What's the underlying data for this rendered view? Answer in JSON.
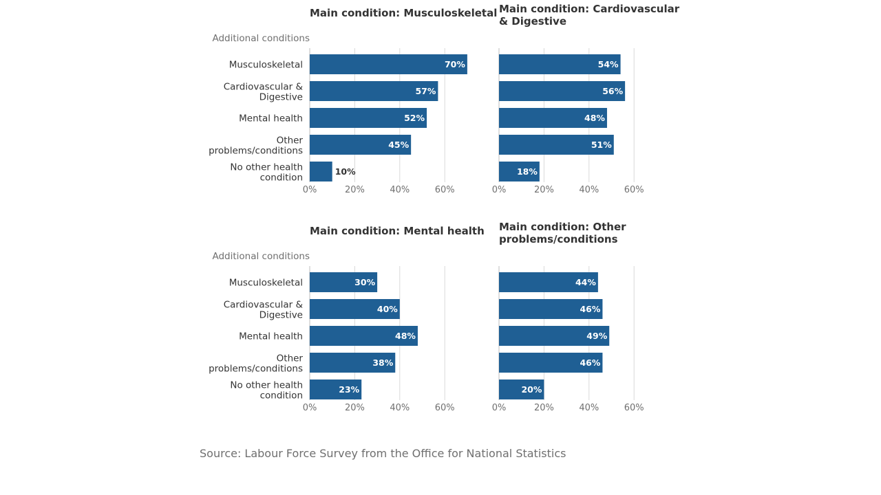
{
  "chart_data": [
    {
      "type": "bar",
      "orientation": "horizontal",
      "title": "Main condition: Musculoskeletal",
      "ylabel": "Additional conditions",
      "categories": [
        "Musculoskeletal",
        "Cardiovascular & Digestive",
        "Mental health",
        "Other problems/conditions",
        "No other health condition"
      ],
      "values": [
        70,
        57,
        52,
        45,
        10
      ],
      "value_labels": [
        "70%",
        "57%",
        "52%",
        "45%",
        "10%"
      ],
      "xlim": [
        0,
        70
      ],
      "xticks": [
        "0%",
        "20%",
        "40%",
        "60%"
      ],
      "grid": true
    },
    {
      "type": "bar",
      "orientation": "horizontal",
      "title": "Main condition: Cardiovascular & Digestive",
      "ylabel": "",
      "categories": [
        "Musculoskeletal",
        "Cardiovascular & Digestive",
        "Mental health",
        "Other problems/conditions",
        "No other health condition"
      ],
      "values": [
        54,
        56,
        48,
        51,
        18
      ],
      "value_labels": [
        "54%",
        "56%",
        "48%",
        "51%",
        "18%"
      ],
      "xlim": [
        0,
        70
      ],
      "xticks": [
        "0%",
        "20%",
        "40%",
        "60%"
      ],
      "grid": true
    },
    {
      "type": "bar",
      "orientation": "horizontal",
      "title": "Main condition: Mental health",
      "ylabel": "Additional conditions",
      "categories": [
        "Musculoskeletal",
        "Cardiovascular & Digestive",
        "Mental health",
        "Other problems/conditions",
        "No other health condition"
      ],
      "values": [
        30,
        40,
        48,
        38,
        23
      ],
      "value_labels": [
        "30%",
        "40%",
        "48%",
        "38%",
        "23%"
      ],
      "xlim": [
        0,
        70
      ],
      "xticks": [
        "0%",
        "20%",
        "40%",
        "60%"
      ],
      "grid": true
    },
    {
      "type": "bar",
      "orientation": "horizontal",
      "title": "Main condition: Other problems/conditions",
      "ylabel": "",
      "categories": [
        "Musculoskeletal",
        "Cardiovascular & Digestive",
        "Mental health",
        "Other problems/conditions",
        "No other health condition"
      ],
      "values": [
        44,
        46,
        49,
        46,
        20
      ],
      "value_labels": [
        "44%",
        "46%",
        "49%",
        "46%",
        "20%"
      ],
      "xlim": [
        0,
        70
      ],
      "xticks": [
        "0%",
        "20%",
        "40%",
        "60%"
      ],
      "grid": true
    }
  ],
  "colors": {
    "bar": "#1f5f94",
    "value_label_inside": "#ffffff",
    "value_label_outside": "#333333",
    "grid": "#d9d9d9"
  },
  "source": "Source: Labour Force Survey from the Office for National Statistics"
}
